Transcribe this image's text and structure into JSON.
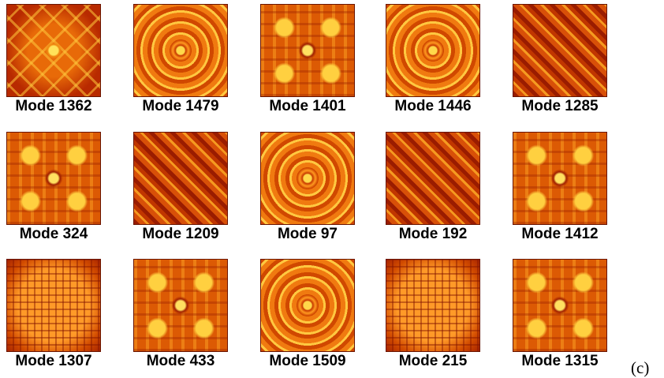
{
  "panels": [
    {
      "label": "Mode 1362"
    },
    {
      "label": "Mode 1479"
    },
    {
      "label": "Mode 1401"
    },
    {
      "label": "Mode 1446"
    },
    {
      "label": "Mode 1285"
    },
    {
      "label": "Mode 324"
    },
    {
      "label": "Mode 1209"
    },
    {
      "label": "Mode 97"
    },
    {
      "label": "Mode 192"
    },
    {
      "label": "Mode 1412"
    },
    {
      "label": "Mode 1307"
    },
    {
      "label": "Mode 433"
    },
    {
      "label": "Mode 1509"
    },
    {
      "label": "Mode 215"
    },
    {
      "label": "Mode 1315"
    }
  ],
  "caption": "(c)"
}
